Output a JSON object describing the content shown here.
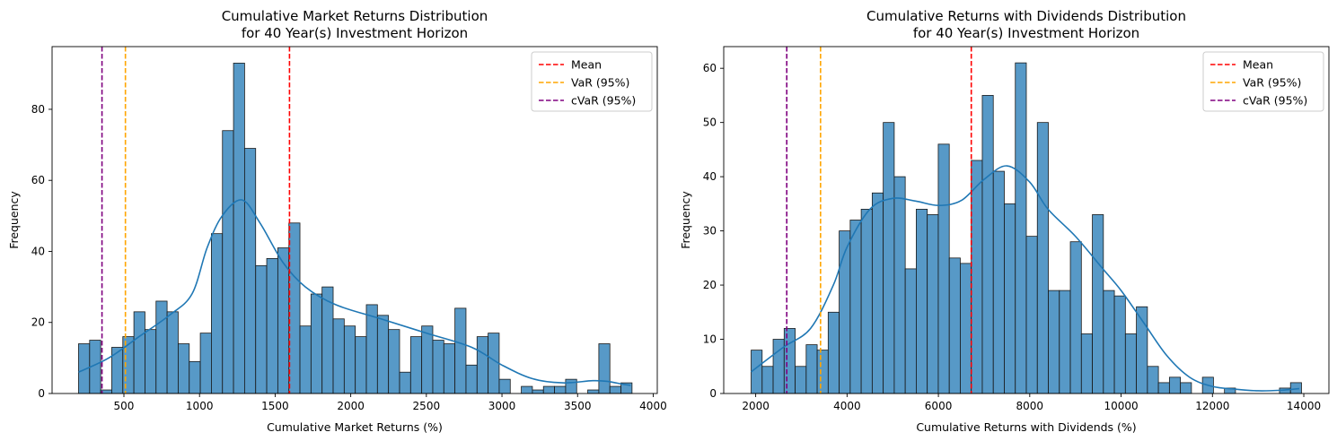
{
  "chart_data": [
    {
      "type": "histogram",
      "title": "Cumulative Market Returns Distribution\nfor 40 Year(s) Investment Horizon",
      "xlabel": "Cumulative Market Returns (%)",
      "ylabel": "Frequency",
      "xlim": [
        25,
        4027
      ],
      "ylim": [
        0,
        97.65
      ],
      "xticks": [
        500,
        1000,
        1500,
        2000,
        2500,
        3000,
        3500,
        4000
      ],
      "yticks": [
        0,
        20,
        40,
        60,
        80
      ],
      "bin_start": 200,
      "bin_width": 73.2,
      "counts": [
        14,
        15,
        1,
        13,
        16,
        23,
        18,
        26,
        23,
        14,
        9,
        17,
        45,
        74,
        93,
        69,
        36,
        38,
        41,
        48,
        19,
        28,
        30,
        21,
        19,
        16,
        25,
        22,
        18,
        6,
        16,
        19,
        15,
        14,
        24,
        8,
        16,
        17,
        4,
        0,
        2,
        1,
        2,
        2,
        4,
        0,
        1,
        14,
        2,
        3
      ],
      "kde": [
        [
          200,
          6
        ],
        [
          400,
          10
        ],
        [
          600,
          16
        ],
        [
          800,
          22
        ],
        [
          950,
          28
        ],
        [
          1050,
          41
        ],
        [
          1150,
          50
        ],
        [
          1280,
          54.5
        ],
        [
          1400,
          48
        ],
        [
          1550,
          37
        ],
        [
          1700,
          30
        ],
        [
          1900,
          25
        ],
        [
          2200,
          21
        ],
        [
          2500,
          17
        ],
        [
          2800,
          13
        ],
        [
          3000,
          8
        ],
        [
          3200,
          4.2
        ],
        [
          3400,
          3
        ],
        [
          3600,
          3.6
        ],
        [
          3700,
          3.4
        ],
        [
          3800,
          2.6
        ],
        [
          3850,
          2.3
        ]
      ],
      "lines": [
        {
          "name": "Mean",
          "x": 1595,
          "color": "#ff0000"
        },
        {
          "name": "VaR (95%)",
          "x": 510,
          "color": "#ffa500"
        },
        {
          "name": "cVaR (95%)",
          "x": 355,
          "color": "#800080"
        }
      ],
      "legend_position": "top-right",
      "bar_color": "#3a87bd",
      "kde_color": "#1f77b4"
    },
    {
      "type": "histogram",
      "title": "Cumulative Returns with Dividends Distribution\nfor 40 Year(s) Investment Horizon",
      "xlabel": "Cumulative Returns with Dividends (%)",
      "ylabel": "Frequency",
      "xlim": [
        1300,
        14550
      ],
      "ylim": [
        0,
        64
      ],
      "xticks": [
        2000,
        4000,
        6000,
        8000,
        10000,
        12000,
        14000
      ],
      "yticks": [
        0,
        10,
        20,
        30,
        40,
        50,
        60
      ],
      "bin_start": 1900,
      "bin_width": 241,
      "counts": [
        8,
        5,
        10,
        12,
        5,
        9,
        8,
        15,
        30,
        32,
        34,
        37,
        50,
        40,
        23,
        34,
        33,
        46,
        25,
        24,
        43,
        55,
        41,
        35,
        61,
        29,
        50,
        19,
        19,
        28,
        11,
        33,
        19,
        18,
        11,
        16,
        5,
        2,
        3,
        2,
        0,
        3,
        0,
        1,
        0,
        0,
        0,
        0,
        1,
        2
      ],
      "kde": [
        [
          1900,
          4
        ],
        [
          2600,
          8.5
        ],
        [
          3200,
          12
        ],
        [
          3700,
          20
        ],
        [
          4000,
          27
        ],
        [
          4500,
          34
        ],
        [
          5000,
          36
        ],
        [
          5500,
          35.5
        ],
        [
          6000,
          34.7
        ],
        [
          6500,
          35.6
        ],
        [
          7000,
          39.5
        ],
        [
          7500,
          42
        ],
        [
          8000,
          39
        ],
        [
          8400,
          34
        ],
        [
          9000,
          29
        ],
        [
          9600,
          23
        ],
        [
          10000,
          19
        ],
        [
          10500,
          13
        ],
        [
          11000,
          7
        ],
        [
          11500,
          3
        ],
        [
          12000,
          1.3
        ],
        [
          12500,
          0.8
        ],
        [
          13000,
          0.5
        ],
        [
          13500,
          0.6
        ],
        [
          13900,
          0.9
        ]
      ],
      "lines": [
        {
          "name": "Mean",
          "x": 6720,
          "color": "#ff0000"
        },
        {
          "name": "VaR (95%)",
          "x": 3420,
          "color": "#ffa500"
        },
        {
          "name": "cVaR (95%)",
          "x": 2680,
          "color": "#800080"
        }
      ],
      "legend_position": "top-right",
      "bar_color": "#3a87bd",
      "kde_color": "#1f77b4"
    }
  ]
}
